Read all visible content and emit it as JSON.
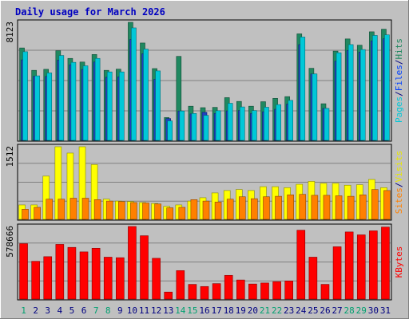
{
  "chart_data": {
    "type": "bar",
    "title": "Daily usage for March 2026",
    "categories": [
      "1",
      "2",
      "3",
      "4",
      "5",
      "6",
      "7",
      "8",
      "9",
      "10",
      "11",
      "12",
      "13",
      "14",
      "15",
      "16",
      "17",
      "18",
      "19",
      "20",
      "21",
      "22",
      "23",
      "24",
      "25",
      "26",
      "27",
      "28",
      "29",
      "30",
      "31"
    ],
    "weekend_days": [
      "1",
      "7",
      "8",
      "14",
      "15",
      "21",
      "22",
      "28",
      "29"
    ],
    "panels": [
      {
        "id": "hits-files-pages",
        "max_label": "8123",
        "ymax": 8123,
        "legend": [
          {
            "text": "Pages",
            "color": "#00c8d8"
          },
          {
            "text": "/",
            "color": "#000080"
          },
          {
            "text": "Files",
            "color": "#0040ff"
          },
          {
            "text": "/",
            "color": "#000080"
          },
          {
            "text": "Hits",
            "color": "#208860"
          }
        ],
        "series": [
          {
            "name": "Hits",
            "color": "#208860",
            "values": [
              6360,
              4820,
              4890,
              6170,
              5640,
              5390,
              5910,
              4820,
              4900,
              8123,
              6700,
              4940,
              1570,
              5780,
              2350,
              2250,
              2270,
              2940,
              2680,
              2350,
              2660,
              2890,
              3010,
              7330,
              4960,
              2520,
              6140,
              6980,
              6550,
              7470,
              7650
            ]
          },
          {
            "name": "Files",
            "color": "#2040c0",
            "values": [
              5540,
              4410,
              4400,
              5520,
              5200,
              4880,
              5390,
              4340,
              4370,
              6940,
              5960,
              4200,
              1500,
              2020,
              1820,
              1930,
              1850,
              2030,
              2050,
              1850,
              1970,
              2140,
              2500,
              6590,
              4570,
              2200,
              5450,
              6190,
              6070,
              6850,
              6990
            ]
          },
          {
            "name": "Pages",
            "color": "#00c8d8",
            "values": [
              6100,
              4440,
              4640,
              5840,
              5370,
              5130,
              5640,
              4710,
              4710,
              7740,
              6280,
              4780,
              1340,
              2020,
              1850,
              1720,
              2040,
              2550,
              2300,
              2050,
              2280,
              2460,
              2750,
              7110,
              4570,
              2200,
              6030,
              6590,
              6250,
              7220,
              7260
            ]
          }
        ]
      },
      {
        "id": "visits-sites",
        "max_label": "1512",
        "ymax": 1512,
        "legend": [
          {
            "text": "Sites",
            "color": "#ff8000"
          },
          {
            "text": "/",
            "color": "#000080"
          },
          {
            "text": "Visits",
            "color": "#e8e800"
          }
        ],
        "series": [
          {
            "name": "Visits",
            "color": "#ffff00",
            "values": [
              300,
              300,
              900,
              1512,
              1380,
              1512,
              1140,
              420,
              380,
              370,
              350,
              330,
              270,
              300,
              380,
              450,
              550,
              600,
              620,
              600,
              680,
              680,
              660,
              730,
              790,
              750,
              750,
              710,
              720,
              830,
              660
            ]
          },
          {
            "name": "Sites",
            "color": "#ff8000",
            "values": [
              210,
              250,
              420,
              420,
              440,
              440,
              410,
              380,
              370,
              350,
              340,
              320,
              240,
              250,
              410,
              380,
              360,
              420,
              470,
              430,
              470,
              480,
              510,
              520,
              500,
              500,
              490,
              480,
              510,
              620,
              600
            ]
          }
        ]
      },
      {
        "id": "kbytes",
        "max_label": "578666",
        "ymax": 578666,
        "legend": [
          {
            "text": "KBytes",
            "color": "#ff0000"
          }
        ],
        "series": [
          {
            "name": "KBytes",
            "color": "#ff0000",
            "values": [
              442000,
              301000,
              338000,
              436000,
              412000,
              376000,
              405000,
              334000,
              330000,
              578666,
              505000,
              325000,
              56000,
              227000,
              117000,
              100000,
              123000,
              189000,
              152000,
              120000,
              128000,
              139000,
              144000,
              549000,
              334000,
              117000,
              417000,
              535000,
              512000,
              544000,
              574000
            ]
          }
        ]
      }
    ]
  }
}
